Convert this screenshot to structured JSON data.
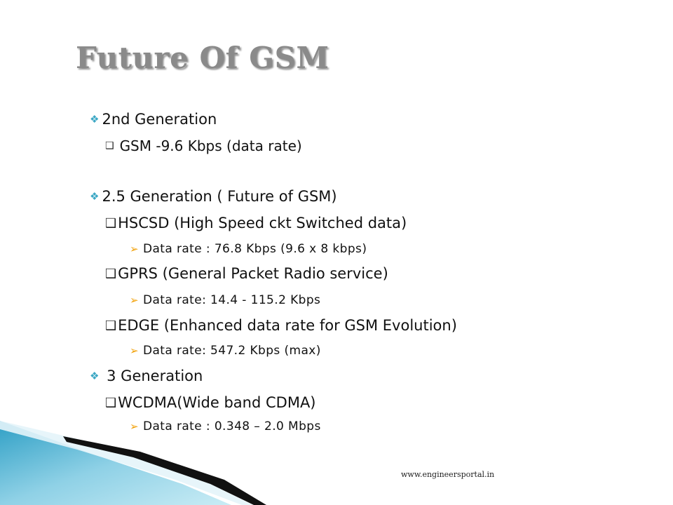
{
  "slide": {
    "title": "Future Of GSM",
    "footer": "www.engineersportal.in",
    "accent_color": "#3ba7c4",
    "arrow_color": "#f2a20c"
  },
  "bullets": {
    "gen2": "2nd Generation",
    "gen2_gsm": "GSM -9.6 Kbps (data rate)",
    "gen25": "2.5 Generation ( Future of GSM)",
    "hscsd": "HSCSD (High Speed ckt Switched  data)",
    "hscsd_rate": "Data rate : 76.8 Kbps (9.6 x 8 kbps)",
    "gprs": "GPRS (General Packet Radio service)",
    "gprs_rate": "Data rate: 14.4 - 115.2 Kbps",
    "edge": "EDGE (Enhanced data rate for GSM Evolution)",
    "edge_rate": "Data rate: 547.2 Kbps (max)",
    "gen3": " 3 Generation",
    "wcdma": "WCDMA(Wide band CDMA)",
    "wcdma_rate": "Data rate : 0.348 – 2.0 Mbps"
  }
}
